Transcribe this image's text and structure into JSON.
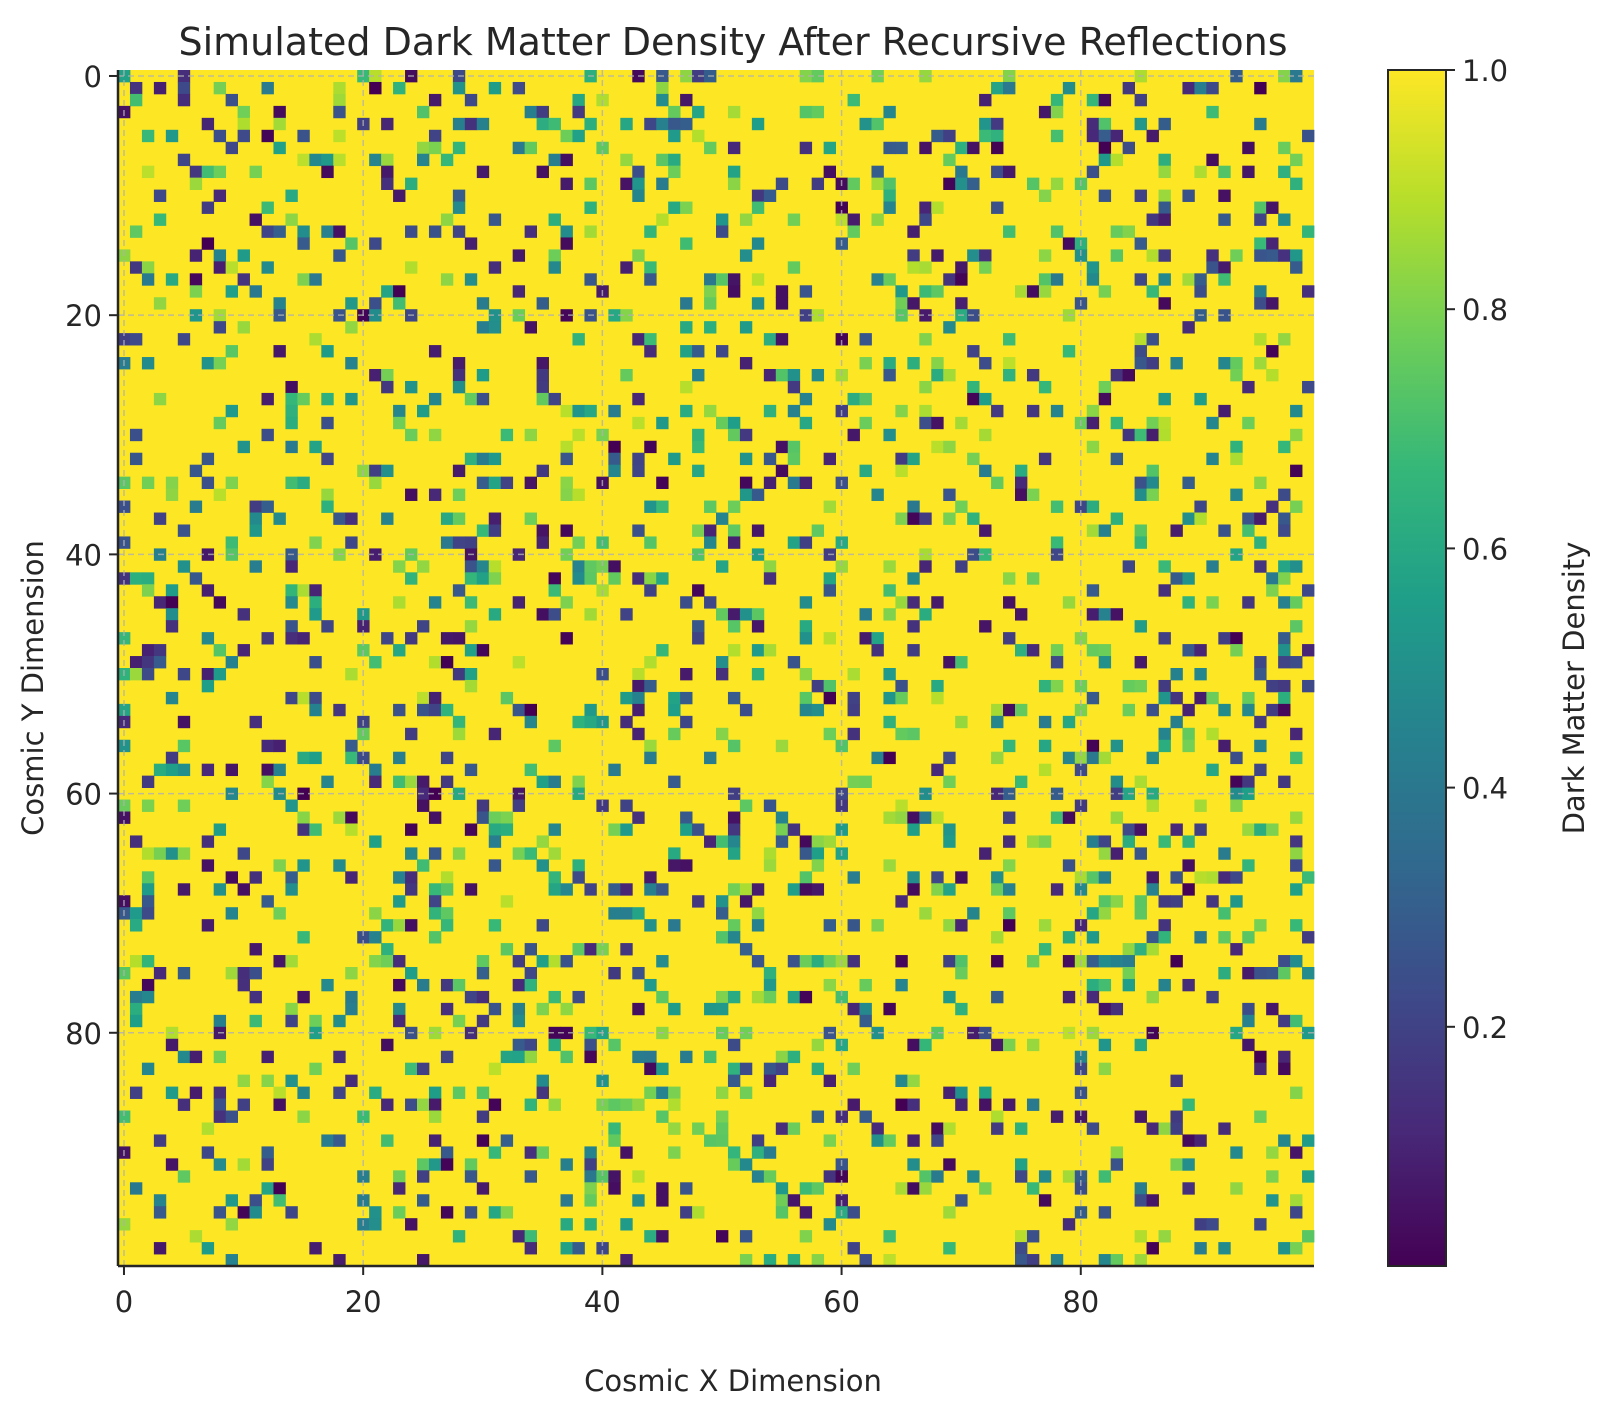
{
  "chart_data": {
    "type": "heatmap",
    "title": "Simulated Dark Matter Density After Recursive Reflections",
    "xlabel": "Cosmic X Dimension",
    "ylabel": "Cosmic Y Dimension",
    "colorbar_label": "Dark Matter Density",
    "colormap": "viridis",
    "grid": true,
    "xlim": [
      0,
      99
    ],
    "ylim": [
      99,
      0
    ],
    "vlim": [
      0.0,
      1.0
    ],
    "shape": [
      100,
      100
    ],
    "x_ticks": [
      0,
      20,
      40,
      60,
      80
    ],
    "y_ticks": [
      0,
      20,
      40,
      60,
      80
    ],
    "x_tick_labels": [
      "0",
      "20",
      "40",
      "60",
      "80"
    ],
    "y_tick_labels": [
      "0",
      "20",
      "40",
      "60",
      "80"
    ],
    "colorbar_ticks": [
      0.2,
      0.4,
      0.6,
      0.8,
      1.0
    ],
    "colorbar_tick_labels": [
      "0.2",
      "0.4",
      "0.6",
      "0.8",
      "1.0"
    ],
    "value_distribution": {
      "dominant_value": 1.0,
      "approx_fraction_near_max": 0.8,
      "scattered_values": "low (0.0–0.3), mid (0.4–0.7) and high-mid (0.7–0.9) cells scattered randomly"
    },
    "colors": {
      "viridis_stops": [
        "#440154",
        "#482878",
        "#3e4989",
        "#31688e",
        "#26828e",
        "#1f9e89",
        "#35b779",
        "#6ece58",
        "#b5de2b",
        "#fde725"
      ],
      "grid_color": "#b0b0b0",
      "axis_color": "#262626"
    }
  }
}
